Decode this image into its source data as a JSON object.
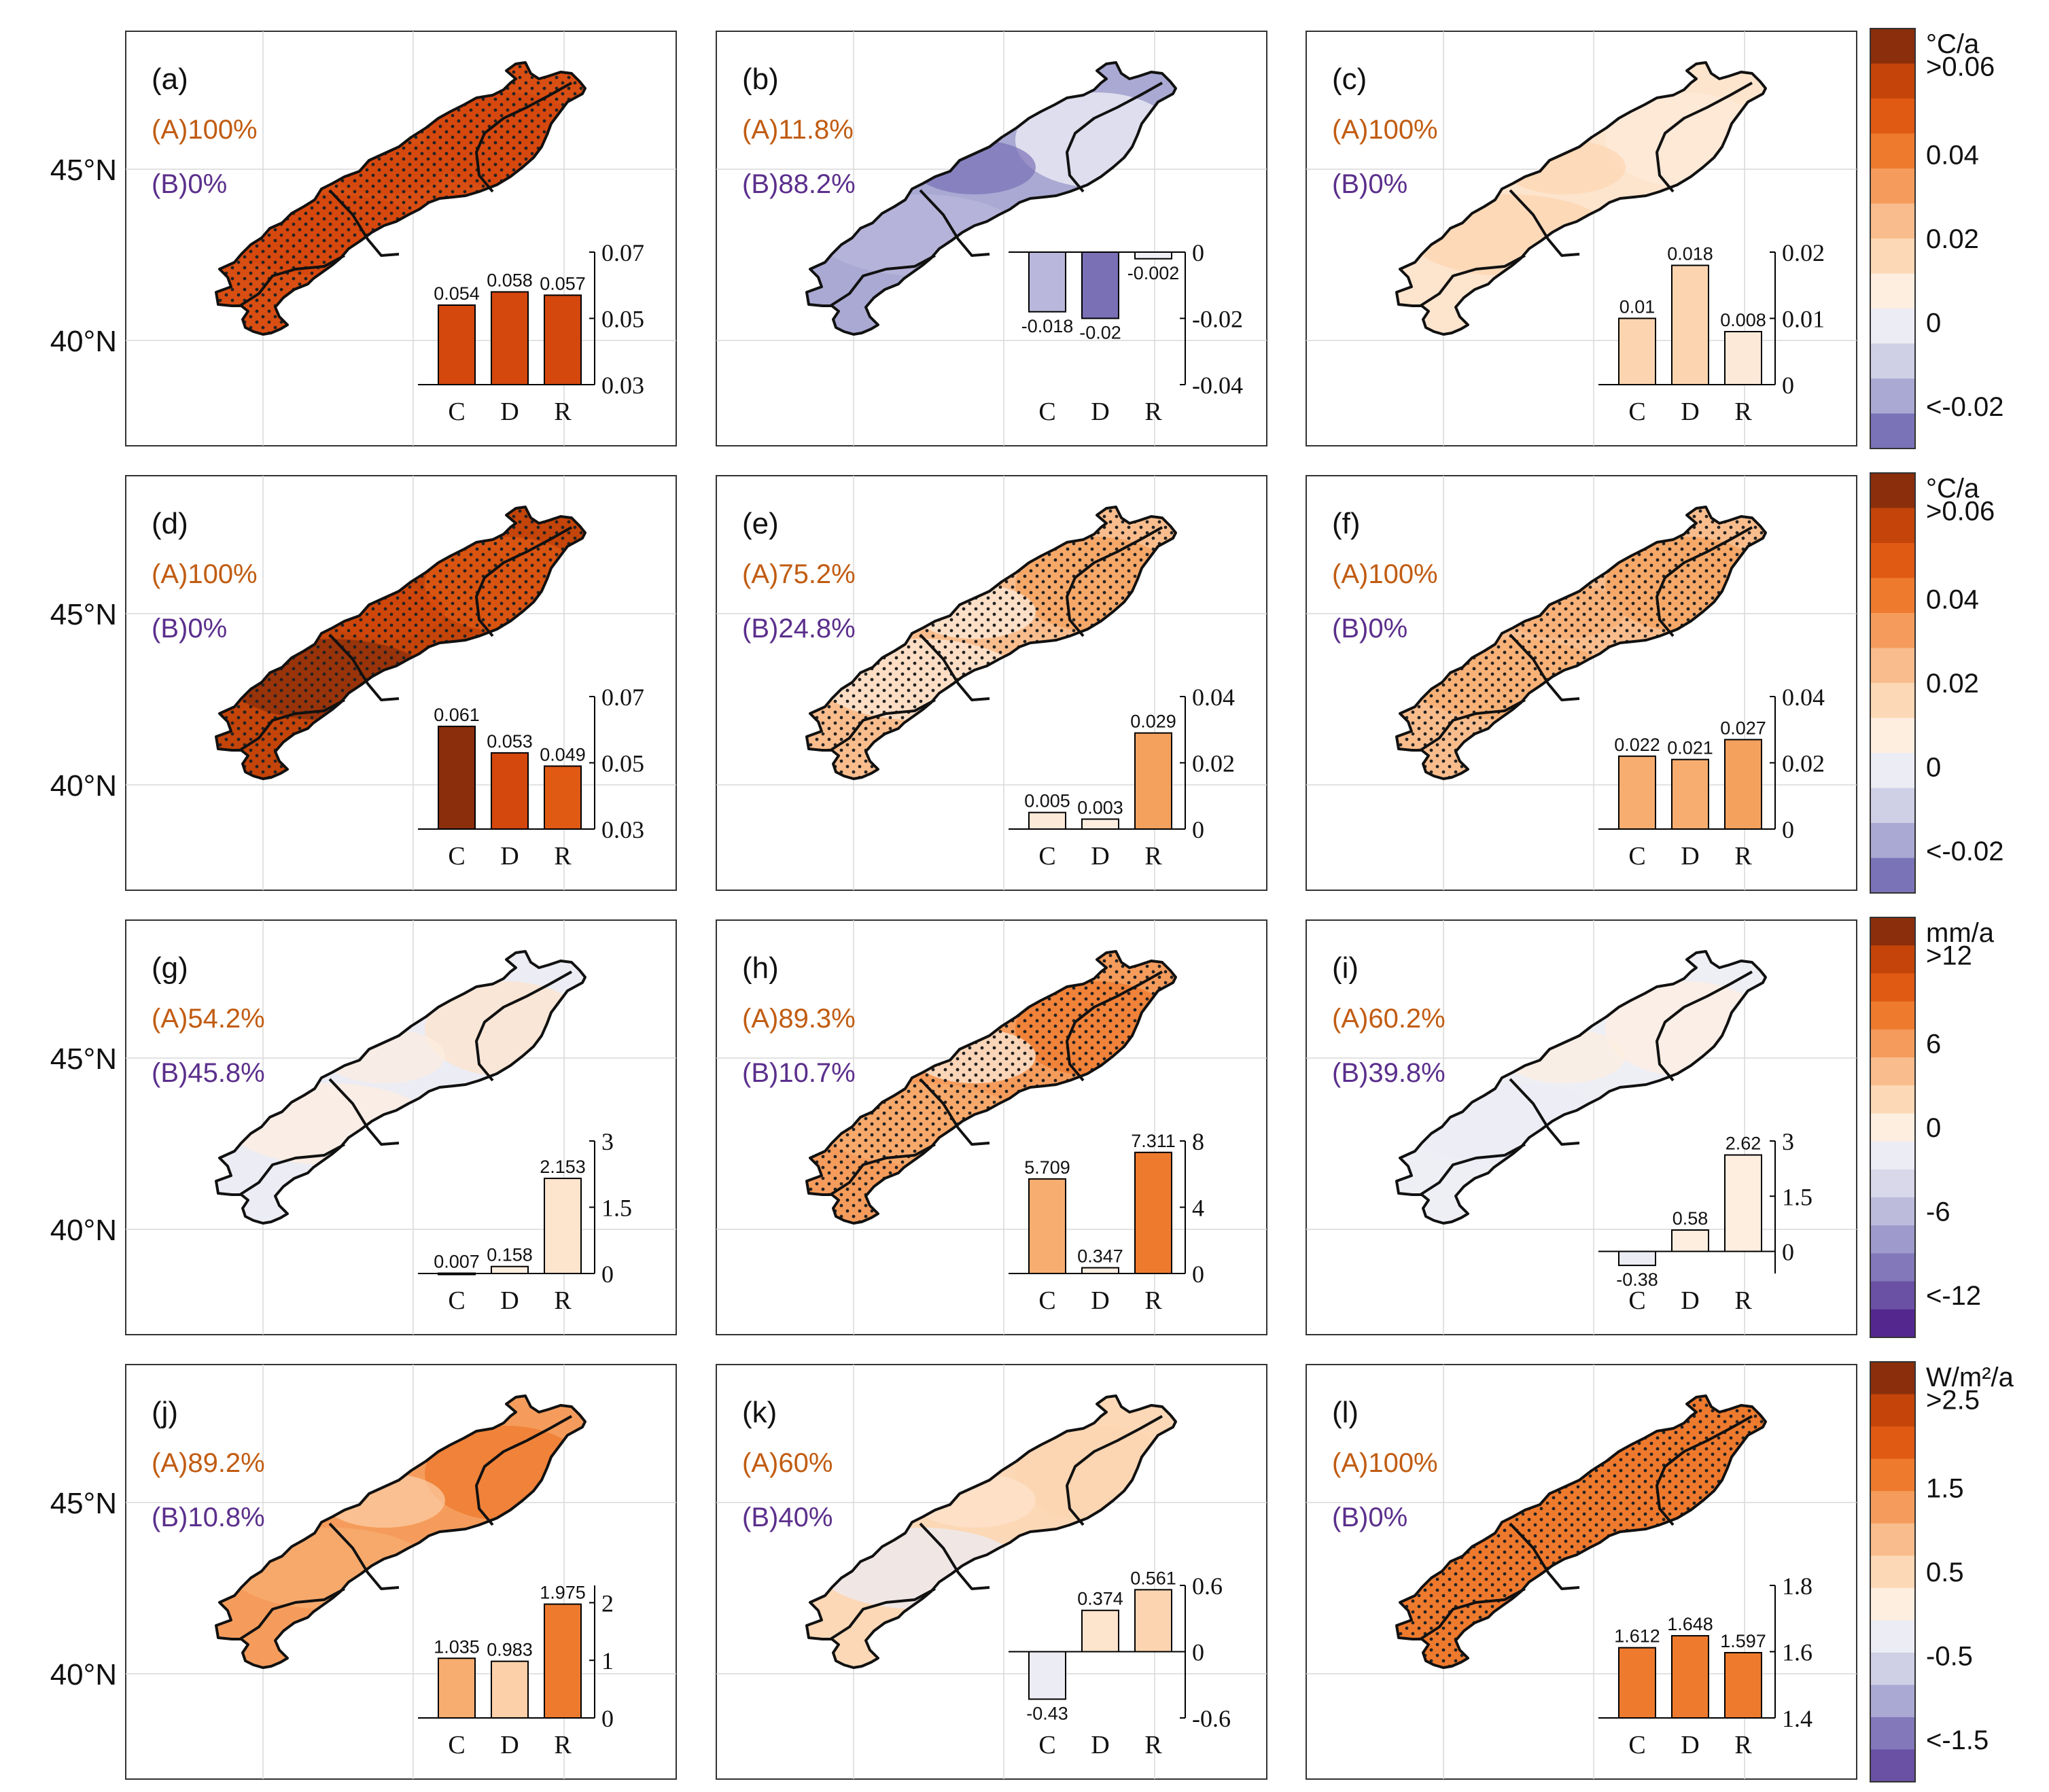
{
  "figure": {
    "lat_labels": [
      "45°N",
      "40°N"
    ],
    "inset_categories": [
      "C",
      "D",
      "R"
    ]
  },
  "colors": {
    "share_a": "#c15c12",
    "share_b": "#5b2f8c",
    "map_outline": "#111111",
    "frame": "#333333",
    "grid": "#d9d9d9",
    "bar_edge": "#000000"
  },
  "colorbars": [
    {
      "unit": "°C/a",
      "tick_labels": [
        ">0.06",
        "0.04",
        "0.02",
        "0",
        "<-0.02"
      ],
      "colors": [
        "#8a2e0b",
        "#c44409",
        "#e05a13",
        "#ee7a2e",
        "#f59c5c",
        "#f9bd8d",
        "#fcd8b6",
        "#fdeee0",
        "#ececf4",
        "#cfcfe6",
        "#a9a9d3",
        "#7b73b8"
      ]
    },
    {
      "unit": "°C/a",
      "tick_labels": [
        ">0.06",
        "0.04",
        "0.02",
        "0",
        "<-0.02"
      ],
      "colors": [
        "#8a2e0b",
        "#c44409",
        "#e05a13",
        "#ee7a2e",
        "#f59c5c",
        "#f9bd8d",
        "#fcd8b6",
        "#fdeee0",
        "#ececf4",
        "#cfcfe6",
        "#a9a9d3",
        "#7b73b8"
      ]
    },
    {
      "unit": "mm/a",
      "tick_labels": [
        ">12",
        "6",
        "0",
        "-6",
        "<-12"
      ],
      "colors": [
        "#8a2e0b",
        "#c44409",
        "#e05a13",
        "#ee7a2e",
        "#f59c5c",
        "#f9bd8d",
        "#fcd8b6",
        "#fdeee0",
        "#ececf4",
        "#d9d8ea",
        "#bcbbdc",
        "#9e9acb",
        "#8278ba",
        "#6a51a3",
        "#54278f"
      ]
    },
    {
      "unit": "W/m²/a",
      "tick_labels": [
        ">2.5",
        "1.5",
        "0.5",
        "-0.5",
        "<-1.5"
      ],
      "colors": [
        "#8a2e0b",
        "#c44409",
        "#e05a13",
        "#ee7a2e",
        "#f59c5c",
        "#f9bd8d",
        "#fcd8b6",
        "#fdeee0",
        "#ececf4",
        "#cfcfe6",
        "#a9a9d3",
        "#8278ba",
        "#6a51a3"
      ]
    }
  ],
  "chart_data": [
    {
      "type": "bar",
      "panel": "(a)",
      "share_a": "(A)100%",
      "share_b": "(B)0%",
      "categories": [
        "C",
        "D",
        "R"
      ],
      "values": [
        0.054,
        0.058,
        0.057
      ],
      "value_labels": [
        "0.054",
        "0.058",
        "0.057"
      ],
      "ylim": [
        0.03,
        0.07
      ],
      "ytick_labels": [
        "0.07",
        "0.05",
        "0.03"
      ],
      "bar_colors": [
        "#d4470d",
        "#d4470d",
        "#d4470d"
      ],
      "map_fill": "#d94e12",
      "stippled": true
    },
    {
      "type": "bar",
      "panel": "(b)",
      "share_a": "(A)11.8%",
      "share_b": "(B)88.2%",
      "categories": [
        "C",
        "D",
        "R"
      ],
      "values": [
        -0.018,
        -0.02,
        -0.002
      ],
      "value_labels": [
        "-0.018",
        "-0.02",
        "-0.002"
      ],
      "ylim": [
        -0.04,
        0
      ],
      "ytick_labels": [
        "0",
        "-0.02",
        "-0.04"
      ],
      "bar_colors": [
        "#b9b7db",
        "#7a70b6",
        "#f1f0f7"
      ],
      "map_fill": "#a9a9d3",
      "stippled": false
    },
    {
      "type": "bar",
      "panel": "(c)",
      "share_a": "(A)100%",
      "share_b": "(B)0%",
      "categories": [
        "C",
        "D",
        "R"
      ],
      "values": [
        0.01,
        0.018,
        0.008
      ],
      "value_labels": [
        "0.01",
        "0.018",
        "0.008"
      ],
      "ylim": [
        0,
        0.02
      ],
      "ytick_labels": [
        "0.02",
        "0.01",
        "0"
      ],
      "bar_colors": [
        "#fcd5b0",
        "#fcd5b0",
        "#fde9d8"
      ],
      "map_fill": "#fde4cd",
      "stippled": false
    },
    {
      "type": "bar",
      "panel": "(d)",
      "share_a": "(A)100%",
      "share_b": "(B)0%",
      "categories": [
        "C",
        "D",
        "R"
      ],
      "values": [
        0.061,
        0.053,
        0.049
      ],
      "value_labels": [
        "0.061",
        "0.053",
        "0.049"
      ],
      "ylim": [
        0.03,
        0.07
      ],
      "ytick_labels": [
        "0.07",
        "0.05",
        "0.03"
      ],
      "bar_colors": [
        "#8a2e0b",
        "#d4470d",
        "#e05a13"
      ],
      "map_fill": "#c44409",
      "stippled": true
    },
    {
      "type": "bar",
      "panel": "(e)",
      "share_a": "(A)75.2%",
      "share_b": "(B)24.8%",
      "categories": [
        "C",
        "D",
        "R"
      ],
      "values": [
        0.005,
        0.003,
        0.029
      ],
      "value_labels": [
        "0.005",
        "0.003",
        "0.029"
      ],
      "ylim": [
        0,
        0.04
      ],
      "ytick_labels": [
        "0.04",
        "0.02",
        "0"
      ],
      "bar_colors": [
        "#fde9d8",
        "#fdeee0",
        "#f4a15e"
      ],
      "map_fill": "#f9bd8d",
      "stippled": true
    },
    {
      "type": "bar",
      "panel": "(f)",
      "share_a": "(A)100%",
      "share_b": "(B)0%",
      "categories": [
        "C",
        "D",
        "R"
      ],
      "values": [
        0.022,
        0.021,
        0.027
      ],
      "value_labels": [
        "0.022",
        "0.021",
        "0.027"
      ],
      "ylim": [
        0,
        0.04
      ],
      "ytick_labels": [
        "0.04",
        "0.02",
        "0"
      ],
      "bar_colors": [
        "#f7ad70",
        "#f7ad70",
        "#f4a15e"
      ],
      "map_fill": "#f9bd8d",
      "stippled": true
    },
    {
      "type": "bar",
      "panel": "(g)",
      "share_a": "(A)54.2%",
      "share_b": "(B)45.8%",
      "categories": [
        "C",
        "D",
        "R"
      ],
      "values": [
        0.007,
        0.158,
        2.153
      ],
      "value_labels": [
        "0.007",
        "0.158",
        "2.153"
      ],
      "ylim": [
        0,
        3
      ],
      "ytick_labels": [
        "3",
        "1.5",
        "0"
      ],
      "bar_colors": [
        "#fdeee0",
        "#fdeee0",
        "#fde4cd"
      ],
      "map_fill": "#ececf4",
      "stippled": false
    },
    {
      "type": "bar",
      "panel": "(h)",
      "share_a": "(A)89.3%",
      "share_b": "(B)10.7%",
      "categories": [
        "C",
        "D",
        "R"
      ],
      "values": [
        5.709,
        0.347,
        7.311
      ],
      "value_labels": [
        "5.709",
        "0.347",
        "7.311"
      ],
      "ylim": [
        0,
        8
      ],
      "ytick_labels": [
        "8",
        "4",
        "0"
      ],
      "bar_colors": [
        "#f7ad70",
        "#fdeee0",
        "#ee7a2e"
      ],
      "map_fill": "#f59c5c",
      "stippled": true
    },
    {
      "type": "bar",
      "panel": "(i)",
      "share_a": "(A)60.2%",
      "share_b": "(B)39.8%",
      "categories": [
        "C",
        "D",
        "R"
      ],
      "values": [
        -0.38,
        0.58,
        2.62
      ],
      "value_labels": [
        "-0.38",
        "0.58",
        "2.62"
      ],
      "ylim": [
        -0.6,
        3
      ],
      "ytick_labels": [
        "3",
        "1.5",
        "0"
      ],
      "bar_colors": [
        "#ececf4",
        "#fdeee0",
        "#fdeee0"
      ],
      "map_fill": "#eeeef5",
      "stippled": false
    },
    {
      "type": "bar",
      "panel": "(j)",
      "share_a": "(A)89.2%",
      "share_b": "(B)10.8%",
      "categories": [
        "C",
        "D",
        "R"
      ],
      "values": [
        1.035,
        0.983,
        1.975
      ],
      "value_labels": [
        "1.035",
        "0.983",
        "1.975"
      ],
      "ylim": [
        0,
        2.3
      ],
      "ytick_labels": [
        "2",
        "1",
        "0"
      ],
      "bar_colors": [
        "#f7ad70",
        "#fcd0a8",
        "#ee7a2e"
      ],
      "map_fill": "#f59c5c",
      "stippled": false
    },
    {
      "type": "bar",
      "panel": "(k)",
      "share_a": "(A)60%",
      "share_b": "(B)40%",
      "categories": [
        "C",
        "D",
        "R"
      ],
      "values": [
        -0.43,
        0.374,
        0.561
      ],
      "value_labels": [
        "-0.43",
        "0.374",
        "0.561"
      ],
      "ylim": [
        -0.6,
        0.6
      ],
      "ytick_labels": [
        "0.6",
        "0",
        "-0.6"
      ],
      "bar_colors": [
        "#ececf4",
        "#fde4cd",
        "#fcd5b0"
      ],
      "map_fill": "#fcd8b6",
      "stippled": false
    },
    {
      "type": "bar",
      "panel": "(l)",
      "share_a": "(A)100%",
      "share_b": "(B)0%",
      "categories": [
        "C",
        "D",
        "R"
      ],
      "values": [
        1.612,
        1.648,
        1.597
      ],
      "value_labels": [
        "1.612",
        "1.648",
        "1.597"
      ],
      "ylim": [
        1.4,
        1.8
      ],
      "ytick_labels": [
        "1.8",
        "1.6",
        "1.4"
      ],
      "bar_colors": [
        "#ee7a2e",
        "#ee7a2e",
        "#ee7a2e"
      ],
      "map_fill": "#ee7a2e",
      "stippled": true
    }
  ]
}
